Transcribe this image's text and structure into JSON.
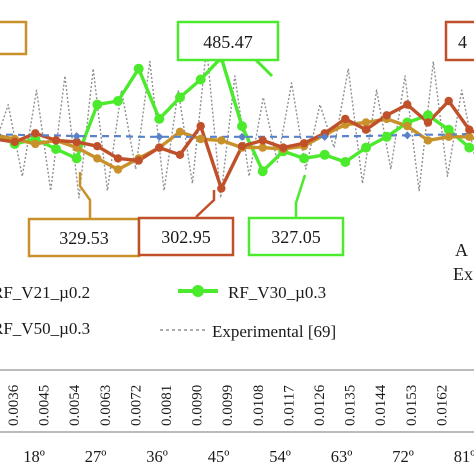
{
  "chart_data": {
    "type": "line",
    "title": "",
    "xlabel": "",
    "ylabel": "",
    "secondary_tick_labels": [
      "0.0036",
      "0.0045",
      "0.0054",
      "0.0063",
      "0.0072",
      "0.0081",
      "0.0090",
      "0.0099",
      "0.0108",
      "0.0117",
      "0.0126",
      "0.0135",
      "0.0144",
      "0.0153",
      "0.0162"
    ],
    "angle_tick_labels": [
      "18º",
      "27º",
      "36º",
      "45º",
      "54º",
      "63º",
      "72º",
      "81º"
    ],
    "series": [
      {
        "name": "RF_V30_µ0.3",
        "color": "#4cea2c",
        "values": [
          380,
          365,
          372,
          358,
          345,
          420,
          425,
          470,
          400,
          430,
          455,
          485.47,
          390,
          327.05,
          355,
          345,
          350,
          340,
          360,
          375,
          395,
          405,
          385,
          360,
          360
        ]
      },
      {
        "name": "RF_V21_µ0.2",
        "color": "#c8912a",
        "values": [
          378,
          372,
          365,
          370,
          360,
          345,
          329.53,
          345,
          360,
          382,
          372,
          370,
          360,
          360,
          358,
          362,
          378,
          392,
          395,
          400,
          390,
          370,
          375,
          375,
          365
        ]
      },
      {
        "name": "",
        "color": "#c0502a",
        "values": [
          372,
          368,
          380,
          370,
          368,
          362,
          345,
          342,
          360,
          350,
          390,
          302.95,
          362,
          370,
          360,
          366,
          380,
          400,
          385,
          405,
          420,
          395,
          425,
          385,
          372
        ]
      },
      {
        "name": "RF_V50_µ0.3",
        "color": "#5a82c8",
        "values": [
          378,
          378,
          377,
          377,
          376,
          376,
          376,
          375,
          375,
          375,
          375,
          375,
          375,
          375,
          375,
          375,
          375,
          376,
          376,
          377,
          377,
          378,
          378,
          379,
          379
        ]
      },
      {
        "name": "Experimental [69]",
        "color": "#909090",
        "values": [
          360,
          420,
          320,
          440,
          300,
          460,
          290,
          470,
          300,
          440,
          330,
          480,
          300,
          440,
          310,
          500,
          290,
          460,
          320,
          430,
          340,
          450,
          330,
          420,
          360,
          470,
          310,
          440,
          330,
          460,
          300,
          480,
          320,
          440,
          340,
          460
        ]
      }
    ],
    "annotations": {
      "top_center": "485.47",
      "bottom_left": "329.53",
      "bottom_middle": "302.95",
      "bottom_right": "327.05",
      "left_cut": "",
      "right_cut": "4",
      "side_text_1": "A",
      "side_text_2": "Ex"
    },
    "legend": {
      "entries": [
        "RF_V21_µ0.2",
        "RF_V30_µ0.3",
        "RF_V50_µ0.3",
        "Experimental [69]"
      ],
      "placement": "bottom",
      "v21_prefix": "RF_V21_µ0.2",
      "v50_prefix": "RF_V50_µ0.3"
    }
  }
}
